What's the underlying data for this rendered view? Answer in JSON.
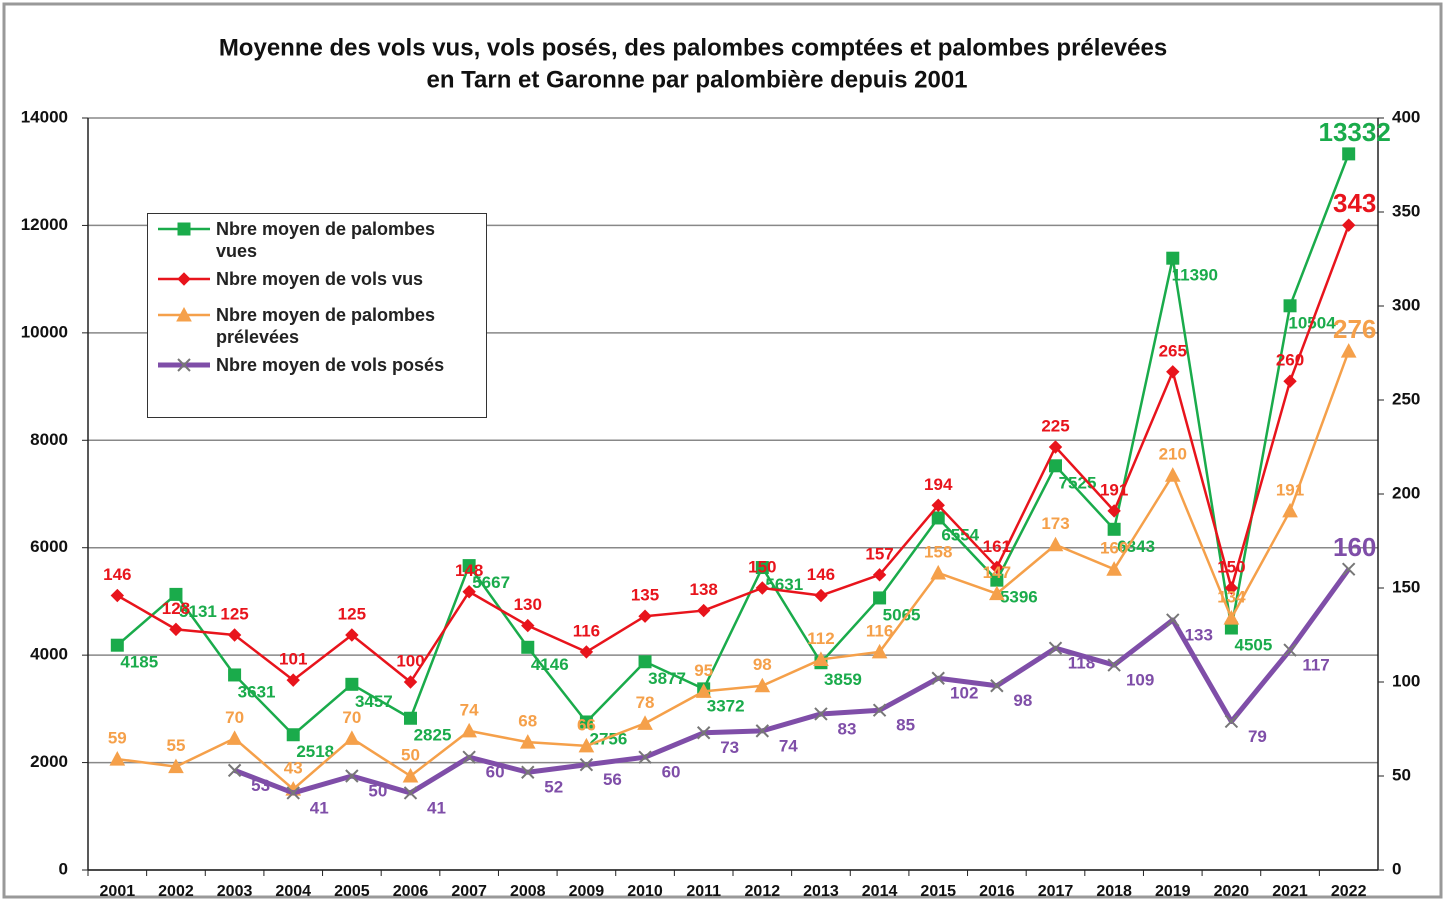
{
  "chart_data": {
    "type": "line",
    "title": [
      "Moyenne  des vols vus, vols posés, des palombes  comptées et  palombes prélevées",
      "en Tarn et Garonne par palombière  depuis 2001"
    ],
    "categories": [
      "2001",
      "2002",
      "2003",
      "2004",
      "2005",
      "2006",
      "2007",
      "2008",
      "2009",
      "2010",
      "2011",
      "2012",
      "2013",
      "2014",
      "2015",
      "2016",
      "2017",
      "2018",
      "2019",
      "2020",
      "2021",
      "2022"
    ],
    "series": [
      {
        "name": "Nbre moyen de palombes vues",
        "color": "#1aab4b",
        "marker": "square",
        "axis": "y",
        "values": [
          4185,
          5131,
          3631,
          2518,
          3457,
          2825,
          5667,
          4146,
          2756,
          3877,
          3372,
          5631,
          3859,
          5065,
          6554,
          5396,
          7525,
          6343,
          11390,
          4505,
          10504,
          13332
        ]
      },
      {
        "name": "Nbre moyen de vols vus",
        "color": "#e8141c",
        "marker": "diamond",
        "axis": "y2",
        "values": [
          146,
          128,
          125,
          101,
          125,
          100,
          148,
          130,
          116,
          135,
          138,
          150,
          146,
          157,
          194,
          161,
          225,
          191,
          265,
          150,
          260,
          343
        ]
      },
      {
        "name": "Nbre moyen de palombes prélevées",
        "color": "#f5a04a",
        "marker": "triangle",
        "axis": "y2",
        "values": [
          59,
          55,
          70,
          43,
          70,
          50,
          74,
          68,
          66,
          78,
          95,
          98,
          112,
          116,
          158,
          147,
          173,
          160,
          210,
          134,
          191,
          276
        ]
      },
      {
        "name": "Nbre moyen de vols posés",
        "color": "#7f4ea8",
        "marker": "x",
        "axis": "y2",
        "values": [
          null,
          null,
          53,
          41,
          50,
          41,
          60,
          52,
          56,
          60,
          73,
          74,
          83,
          85,
          102,
          98,
          118,
          109,
          133,
          79,
          117,
          160
        ]
      }
    ],
    "ylim": [
      0,
      14000
    ],
    "yticks": [
      0,
      2000,
      4000,
      6000,
      8000,
      10000,
      12000,
      14000
    ],
    "y2lim": [
      0,
      400
    ],
    "y2ticks": [
      0,
      50,
      100,
      150,
      200,
      250,
      300,
      350,
      400
    ],
    "grid": true,
    "legend": "upper left"
  }
}
